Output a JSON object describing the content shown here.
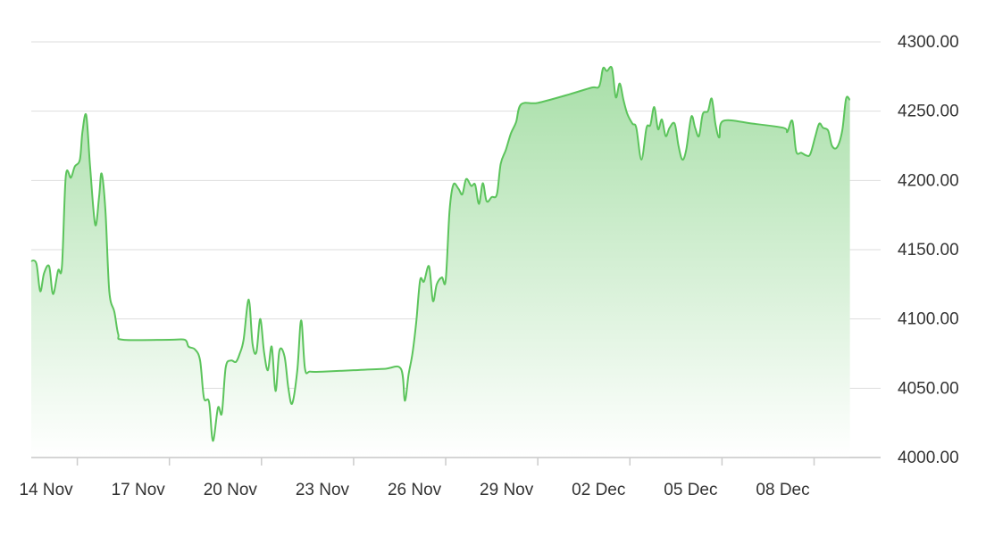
{
  "chart_data": {
    "type": "area",
    "title": "",
    "xlabel": "",
    "ylabel": "",
    "x_ticks": [
      {
        "date": "2023-11-14",
        "label": "14 Nov"
      },
      {
        "date": "2023-11-17",
        "label": "17 Nov"
      },
      {
        "date": "2023-11-20",
        "label": "20 Nov"
      },
      {
        "date": "2023-11-23",
        "label": "23 Nov"
      },
      {
        "date": "2023-11-26",
        "label": "26 Nov"
      },
      {
        "date": "2023-11-29",
        "label": "29 Nov"
      },
      {
        "date": "2023-12-02",
        "label": "02 Dec"
      },
      {
        "date": "2023-12-05",
        "label": "05 Dec"
      },
      {
        "date": "2023-12-08",
        "label": "08 Dec"
      }
    ],
    "y_ticks": [
      "4000.00",
      "4050.00",
      "4100.00",
      "4150.00",
      "4200.00",
      "4250.00",
      "4300.00"
    ],
    "xlim": [
      "2023-11-13 00:00",
      "2023-12-10 16:00"
    ],
    "ylim": [
      4000,
      4300
    ],
    "grid": true,
    "y_axis_side": "right",
    "colors": {
      "line": "#5cc45c",
      "fill_top": "#a8dfa8",
      "fill_bottom": "#ffffff",
      "grid": "#dddddd",
      "axis": "#cccccc"
    },
    "series": [
      {
        "points": [
          [
            "2023-11-13 00:00",
            4142
          ],
          [
            "2023-11-13 04:00",
            4140
          ],
          [
            "2023-11-13 07:00",
            4120
          ],
          [
            "2023-11-13 10:00",
            4133
          ],
          [
            "2023-11-13 14:00",
            4138
          ],
          [
            "2023-11-13 17:00",
            4118
          ],
          [
            "2023-11-13 21:00",
            4135
          ],
          [
            "2023-11-14 00:00",
            4138
          ],
          [
            "2023-11-14 03:00",
            4203
          ],
          [
            "2023-11-14 07:00",
            4202
          ],
          [
            "2023-11-14 10:00",
            4210
          ],
          [
            "2023-11-14 14:00",
            4215
          ],
          [
            "2023-11-14 16:00",
            4235
          ],
          [
            "2023-11-14 19:00",
            4247
          ],
          [
            "2023-11-14 22:00",
            4210
          ],
          [
            "2023-11-15 02:00",
            4168
          ],
          [
            "2023-11-15 05:00",
            4188
          ],
          [
            "2023-11-15 07:00",
            4205
          ],
          [
            "2023-11-15 10:00",
            4178
          ],
          [
            "2023-11-15 13:00",
            4120
          ],
          [
            "2023-11-15 17:00",
            4105
          ],
          [
            "2023-11-15 20:00",
            4089
          ],
          [
            "2023-11-16 00:00",
            4085
          ],
          [
            "2023-11-17 12:00",
            4085
          ],
          [
            "2023-11-18 00:00",
            4085
          ],
          [
            "2023-11-18 03:00",
            4080
          ],
          [
            "2023-11-18 08:00",
            4078
          ],
          [
            "2023-11-18 12:00",
            4070
          ],
          [
            "2023-11-18 15:00",
            4043
          ],
          [
            "2023-11-18 19:00",
            4040
          ],
          [
            "2023-11-18 22:00",
            4012
          ],
          [
            "2023-11-19 02:00",
            4036
          ],
          [
            "2023-11-19 05:00",
            4032
          ],
          [
            "2023-11-19 08:00",
            4065
          ],
          [
            "2023-11-19 12:00",
            4070
          ],
          [
            "2023-11-19 16:00",
            4069
          ],
          [
            "2023-11-19 19:00",
            4075
          ],
          [
            "2023-11-19 22:00",
            4085
          ],
          [
            "2023-11-20 02:00",
            4114
          ],
          [
            "2023-11-20 05:00",
            4082
          ],
          [
            "2023-11-20 08:00",
            4076
          ],
          [
            "2023-11-20 11:00",
            4100
          ],
          [
            "2023-11-20 14:00",
            4076
          ],
          [
            "2023-11-20 17:00",
            4063
          ],
          [
            "2023-11-20 20:00",
            4080
          ],
          [
            "2023-11-20 23:00",
            4048
          ],
          [
            "2023-11-21 02:00",
            4077
          ],
          [
            "2023-11-21 06:00",
            4073
          ],
          [
            "2023-11-21 09:00",
            4050
          ],
          [
            "2023-11-21 12:00",
            4039
          ],
          [
            "2023-11-21 16:00",
            4063
          ],
          [
            "2023-11-21 19:00",
            4099
          ],
          [
            "2023-11-21 22:00",
            4064
          ],
          [
            "2023-11-22 02:00",
            4062
          ],
          [
            "2023-11-22 12:00",
            4062
          ],
          [
            "2023-11-23 12:00",
            4063
          ],
          [
            "2023-11-24 12:00",
            4064
          ],
          [
            "2023-11-25 01:00",
            4064
          ],
          [
            "2023-11-25 04:00",
            4041
          ],
          [
            "2023-11-25 07:00",
            4060
          ],
          [
            "2023-11-25 10:00",
            4075
          ],
          [
            "2023-11-25 13:00",
            4098
          ],
          [
            "2023-11-25 16:00",
            4128
          ],
          [
            "2023-11-25 19:00",
            4127
          ],
          [
            "2023-11-25 23:00",
            4138
          ],
          [
            "2023-11-26 02:00",
            4113
          ],
          [
            "2023-11-26 05:00",
            4125
          ],
          [
            "2023-11-26 09:00",
            4130
          ],
          [
            "2023-11-26 12:00",
            4128
          ],
          [
            "2023-11-26 15:00",
            4178
          ],
          [
            "2023-11-26 18:00",
            4197
          ],
          [
            "2023-11-26 22:00",
            4194
          ],
          [
            "2023-11-27 01:00",
            4190
          ],
          [
            "2023-11-27 04:00",
            4201
          ],
          [
            "2023-11-27 08:00",
            4196
          ],
          [
            "2023-11-27 11:00",
            4197
          ],
          [
            "2023-11-27 14:00",
            4183
          ],
          [
            "2023-11-27 17:00",
            4198
          ],
          [
            "2023-11-27 20:00",
            4185
          ],
          [
            "2023-11-28 00:00",
            4188
          ],
          [
            "2023-11-28 04:00",
            4190
          ],
          [
            "2023-11-28 07:00",
            4212
          ],
          [
            "2023-11-28 11:00",
            4222
          ],
          [
            "2023-11-28 15:00",
            4234
          ],
          [
            "2023-11-28 19:00",
            4242
          ],
          [
            "2023-11-28 23:00",
            4255
          ],
          [
            "2023-11-29 12:00",
            4256
          ],
          [
            "2023-11-30 12:00",
            4262
          ],
          [
            "2023-12-01 06:00",
            4267
          ],
          [
            "2023-12-01 12:00",
            4268
          ],
          [
            "2023-12-01 15:00",
            4281
          ],
          [
            "2023-12-01 18:00",
            4279
          ],
          [
            "2023-12-01 22:00",
            4281
          ],
          [
            "2023-12-02 01:00",
            4260
          ],
          [
            "2023-12-02 04:00",
            4270
          ],
          [
            "2023-12-02 07:00",
            4258
          ],
          [
            "2023-12-02 10:00",
            4248
          ],
          [
            "2023-12-02 14:00",
            4241
          ],
          [
            "2023-12-02 17:00",
            4238
          ],
          [
            "2023-12-02 21:00",
            4215
          ],
          [
            "2023-12-03 01:00",
            4238
          ],
          [
            "2023-12-03 04:00",
            4240
          ],
          [
            "2023-12-03 07:00",
            4253
          ],
          [
            "2023-12-03 10:00",
            4237
          ],
          [
            "2023-12-03 13:00",
            4244
          ],
          [
            "2023-12-03 16:00",
            4232
          ],
          [
            "2023-12-03 19:00",
            4238
          ],
          [
            "2023-12-03 23:00",
            4241
          ],
          [
            "2023-12-04 02:00",
            4225
          ],
          [
            "2023-12-04 05:00",
            4215
          ],
          [
            "2023-12-04 08:00",
            4222
          ],
          [
            "2023-12-04 12:00",
            4246
          ],
          [
            "2023-12-04 15:00",
            4238
          ],
          [
            "2023-12-04 18:00",
            4232
          ],
          [
            "2023-12-04 21:00",
            4248
          ],
          [
            "2023-12-05 01:00",
            4250
          ],
          [
            "2023-12-05 04:00",
            4259
          ],
          [
            "2023-12-05 07:00",
            4240
          ],
          [
            "2023-12-05 10:00",
            4231
          ],
          [
            "2023-12-05 13:00",
            4243
          ],
          [
            "2023-12-06 12:00",
            4241
          ],
          [
            "2023-12-07 12:00",
            4238
          ],
          [
            "2023-12-07 15:00",
            4235
          ],
          [
            "2023-12-07 19:00",
            4243
          ],
          [
            "2023-12-07 22:00",
            4221
          ],
          [
            "2023-12-08 02:00",
            4220
          ],
          [
            "2023-12-08 06:00",
            4218
          ],
          [
            "2023-12-08 09:00",
            4219
          ],
          [
            "2023-12-08 13:00",
            4232
          ],
          [
            "2023-12-08 16:00",
            4241
          ],
          [
            "2023-12-08 19:00",
            4238
          ],
          [
            "2023-12-08 23:00",
            4236
          ],
          [
            "2023-12-09 02:00",
            4225
          ],
          [
            "2023-12-09 06:00",
            4224
          ],
          [
            "2023-12-09 10:00",
            4236
          ],
          [
            "2023-12-09 13:00",
            4259
          ],
          [
            "2023-12-09 16:00",
            4258
          ]
        ]
      }
    ]
  }
}
